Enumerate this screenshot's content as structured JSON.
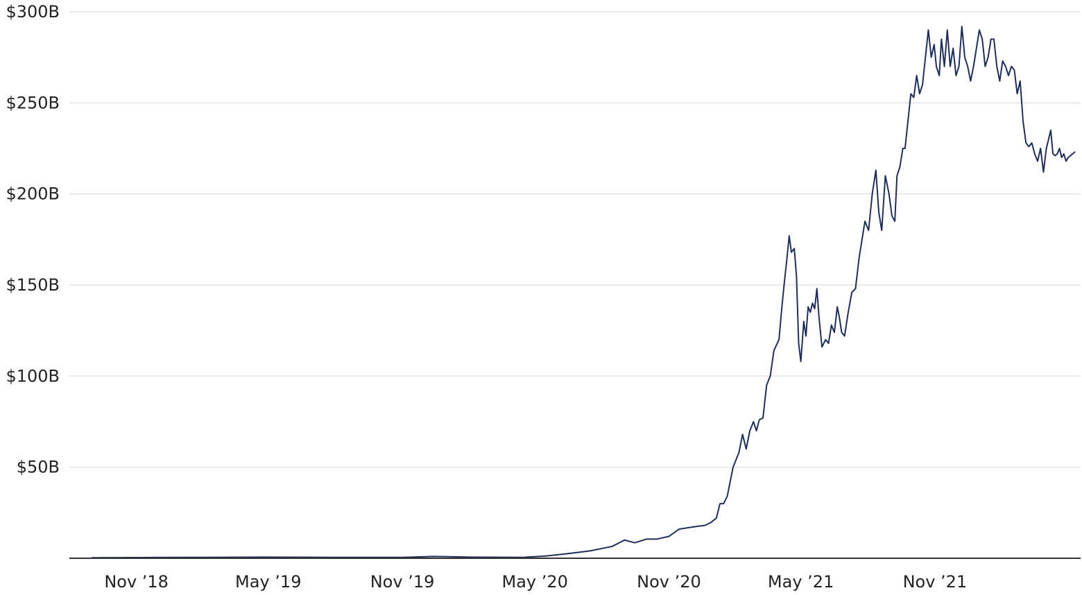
{
  "chart_data": {
    "type": "line",
    "title": "",
    "xlabel": "",
    "ylabel": "",
    "x_range": [
      "2018-08-01",
      "2022-05-20"
    ],
    "ylim": [
      0,
      300
    ],
    "y_unit": "billions USD",
    "grid": "horizontal",
    "line_color": "#1f2d5a",
    "y_ticks": [
      {
        "value": 50,
        "label": "$50B"
      },
      {
        "value": 100,
        "label": "$100B"
      },
      {
        "value": 150,
        "label": "$150B"
      },
      {
        "value": 200,
        "label": "$200B"
      },
      {
        "value": 250,
        "label": "$250B"
      },
      {
        "value": 300,
        "label": "$300B"
      }
    ],
    "x_ticks": [
      {
        "date": "2018-11-01",
        "label": "Nov ’18"
      },
      {
        "date": "2019-05-01",
        "label": "May ’19"
      },
      {
        "date": "2019-11-01",
        "label": "Nov ’19"
      },
      {
        "date": "2020-05-01",
        "label": "May ’20"
      },
      {
        "date": "2020-11-01",
        "label": "Nov ’20"
      },
      {
        "date": "2021-05-01",
        "label": "May ’21"
      },
      {
        "date": "2021-11-01",
        "label": "Nov ’21"
      }
    ],
    "series": [
      {
        "x": [
          "2018-09-01",
          "2018-11-01",
          "2019-02-01",
          "2019-05-01",
          "2019-08-01",
          "2019-11-01",
          "2019-12-15",
          "2020-02-01",
          "2020-04-15",
          "2020-05-15",
          "2020-06-15",
          "2020-07-15",
          "2020-08-15",
          "2020-09-01",
          "2020-09-15",
          "2020-10-01",
          "2020-10-15",
          "2020-11-01",
          "2020-11-15",
          "2020-12-01",
          "2020-12-10",
          "2020-12-20",
          "2020-12-28",
          "2021-01-05",
          "2021-01-10",
          "2021-01-15",
          "2021-01-20",
          "2021-01-28",
          "2021-02-05",
          "2021-02-10",
          "2021-02-15",
          "2021-02-20",
          "2021-02-25",
          "2021-03-01",
          "2021-03-05",
          "2021-03-10",
          "2021-03-15",
          "2021-03-20",
          "2021-03-25",
          "2021-04-01",
          "2021-04-05",
          "2021-04-08",
          "2021-04-12",
          "2021-04-15",
          "2021-04-18",
          "2021-04-22",
          "2021-04-25",
          "2021-04-28",
          "2021-05-01",
          "2021-05-05",
          "2021-05-08",
          "2021-05-11",
          "2021-05-14",
          "2021-05-17",
          "2021-05-20",
          "2021-05-23",
          "2021-05-26",
          "2021-05-30",
          "2021-06-04",
          "2021-06-08",
          "2021-06-12",
          "2021-06-16",
          "2021-06-20",
          "2021-06-23",
          "2021-06-26",
          "2021-06-30",
          "2021-07-05",
          "2021-07-10",
          "2021-07-15",
          "2021-07-20",
          "2021-07-24",
          "2021-07-28",
          "2021-08-02",
          "2021-08-07",
          "2021-08-12",
          "2021-08-16",
          "2021-08-20",
          "2021-08-25",
          "2021-08-30",
          "2021-09-03",
          "2021-09-07",
          "2021-09-10",
          "2021-09-14",
          "2021-09-18",
          "2021-09-21",
          "2021-09-25",
          "2021-09-29",
          "2021-10-03",
          "2021-10-07",
          "2021-10-11",
          "2021-10-15",
          "2021-10-19",
          "2021-10-23",
          "2021-10-27",
          "2021-10-31",
          "2021-11-03",
          "2021-11-07",
          "2021-11-10",
          "2021-11-14",
          "2021-11-18",
          "2021-11-22",
          "2021-11-26",
          "2021-11-30",
          "2021-12-04",
          "2021-12-08",
          "2021-12-12",
          "2021-12-16",
          "2021-12-20",
          "2021-12-24",
          "2021-12-28",
          "2022-01-01",
          "2022-01-05",
          "2022-01-09",
          "2022-01-13",
          "2022-01-17",
          "2022-01-21",
          "2022-01-25",
          "2022-01-29",
          "2022-02-02",
          "2022-02-06",
          "2022-02-10",
          "2022-02-14",
          "2022-02-18",
          "2022-02-22",
          "2022-02-26",
          "2022-03-02",
          "2022-03-06",
          "2022-03-10",
          "2022-03-14",
          "2022-03-18",
          "2022-03-22",
          "2022-03-26",
          "2022-03-30",
          "2022-04-03",
          "2022-04-06",
          "2022-04-09",
          "2022-04-12",
          "2022-04-15",
          "2022-04-18",
          "2022-04-21",
          "2022-04-24",
          "2022-04-27",
          "2022-04-30",
          "2022-05-03",
          "2022-05-06",
          "2022-05-09",
          "2022-05-12"
        ],
        "values": [
          0.3,
          0.4,
          0.5,
          0.6,
          0.5,
          0.5,
          1.0,
          0.6,
          0.5,
          1.2,
          2.5,
          4.0,
          6.5,
          10.0,
          8.5,
          10.5,
          10.5,
          12.0,
          16.0,
          17.0,
          17.5,
          18.0,
          19.5,
          22.0,
          30.0,
          30.0,
          34.0,
          50.0,
          58.0,
          68.0,
          60.0,
          70.0,
          75.0,
          70.0,
          76.0,
          77.0,
          95.0,
          100.0,
          114.0,
          120.0,
          138.0,
          150.0,
          165.0,
          177.0,
          168.0,
          170.0,
          155.0,
          118.0,
          108.0,
          130.0,
          122.0,
          138.0,
          135.0,
          140.0,
          137.0,
          148.0,
          132.0,
          116.0,
          120.0,
          118.0,
          128.0,
          124.0,
          138.0,
          132.0,
          124.0,
          122.0,
          135.0,
          146.0,
          148.0,
          165.0,
          175.0,
          185.0,
          180.0,
          200.0,
          213.0,
          190.0,
          180.0,
          210.0,
          200.0,
          188.0,
          185.0,
          210.0,
          215.0,
          225.0,
          225.0,
          240.0,
          255.0,
          253.0,
          265.0,
          255.0,
          260.0,
          275.0,
          290.0,
          275.0,
          282.0,
          270.0,
          265.0,
          285.0,
          270.0,
          290.0,
          270.0,
          280.0,
          265.0,
          270.0,
          292.0,
          275.0,
          270.0,
          262.0,
          270.0,
          280.0,
          290.0,
          285.0,
          270.0,
          275.0,
          285.0,
          285.0,
          270.0,
          262.0,
          273.0,
          270.0,
          265.0,
          270.0,
          268.0,
          255.0,
          262.0,
          240.0,
          228.0,
          226.0,
          228.0,
          222.0,
          218.0,
          225.0,
          212.0,
          225.0,
          230.0,
          235.0,
          222.0,
          221.0,
          222.0,
          225.0,
          220.0,
          222.0,
          218.0,
          220.0,
          221.0,
          222.0,
          223.0
        ]
      }
    ]
  }
}
